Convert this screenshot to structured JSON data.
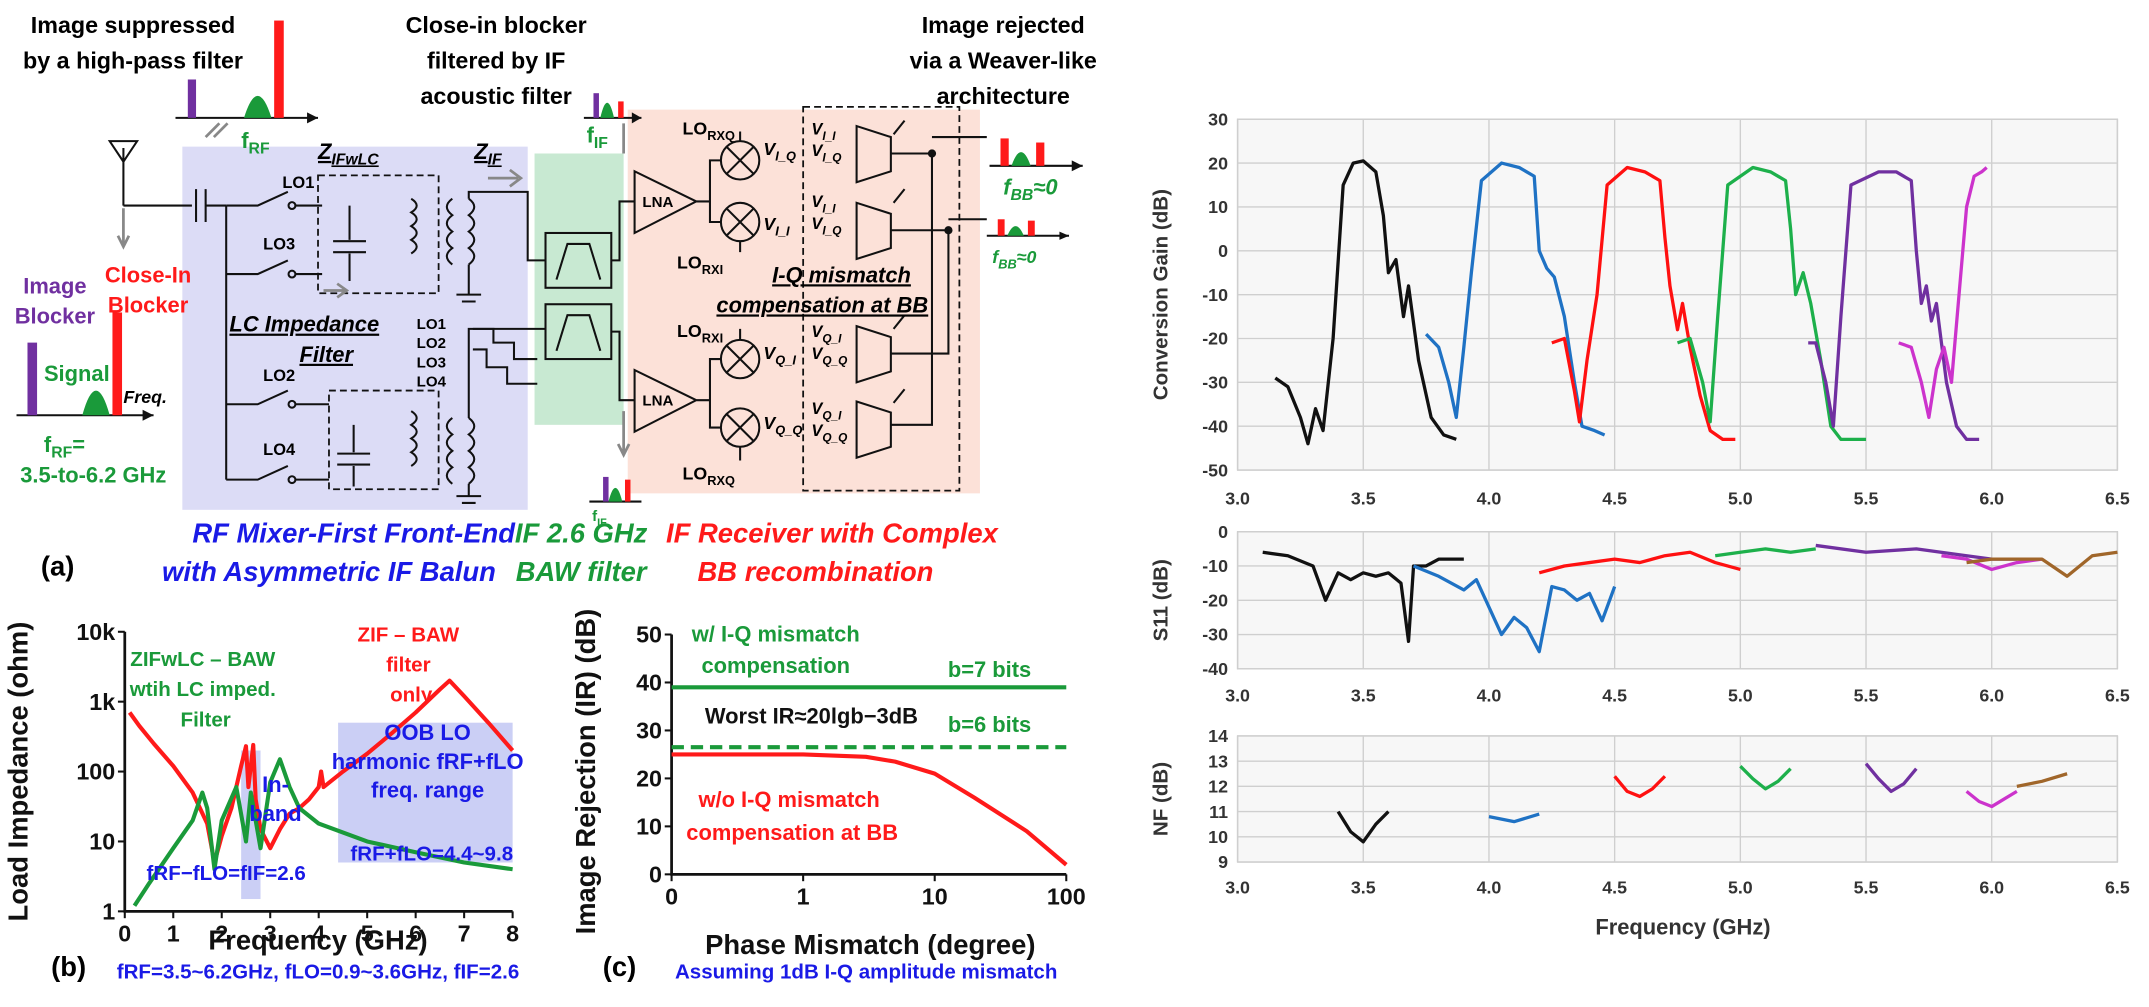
{
  "diagram": {
    "notes": {
      "image_suppressed": [
        "Image suppressed",
        "by a high-pass filter"
      ],
      "close_in": [
        "Close-in blocker",
        "filtered by IF",
        "acoustic filter"
      ],
      "image_rejected": [
        "Image rejected",
        "via a Weaver-like",
        "architecture"
      ]
    },
    "labels": {
      "f_rf": "fRF",
      "z_ifwlc": "ZIFwLC",
      "z_if": "ZIF",
      "f_if": "fIF",
      "f_if_low": "fIF",
      "lo_switch": [
        "LO1",
        "LO3",
        "LO2",
        "LO4"
      ],
      "lo_balun": [
        "LO1",
        "LO2",
        "LO3",
        "LO4"
      ],
      "lc_filter": [
        "LC Impedance",
        "Filter"
      ],
      "lna": [
        "LNA",
        "LNA"
      ],
      "lo_rx": [
        "LORXQ",
        "LORXI",
        "LORXI",
        "LORXQ"
      ],
      "mixer_out": [
        "VI_Q",
        "VI_I",
        "VQ_I",
        "VQ_Q"
      ],
      "adc_in": [
        "VI_I",
        "VI_Q",
        "VI_I",
        "VI_Q",
        "VQ_I",
        "VQ_Q",
        "VQ_I",
        "VQ_Q"
      ],
      "iq_comp": [
        "I-Q mismatch",
        "compensation at BB"
      ],
      "f_bb": [
        "fBB≈0",
        "fBB≈0"
      ],
      "image_blocker": [
        "Image",
        "Blocker"
      ],
      "close_in_blocker": [
        "Close-In",
        "Blocker"
      ],
      "signal": "Signal",
      "f_rf_eq": "fRF=",
      "freq": "Freq.",
      "rf_range": "3.5-to-6.2 GHz",
      "panel": "(a)"
    },
    "captions": {
      "front_end": [
        "RF Mixer-First Front-End",
        "with Asymmetric IF Balun"
      ],
      "baw": [
        "IF 2.6 GHz",
        "BAW filter"
      ],
      "receiver": [
        "IF Receiver with Complex",
        "BB recombination"
      ]
    }
  },
  "chart_data": [
    {
      "type": "line",
      "panel": "(b)",
      "xlabel": "Frequency (GHz)",
      "ylabel": "Load Impedance (ohm)",
      "caption": "fRF=3.5~6.2GHz, fLO=0.9~3.6GHz, fIF=2.6",
      "yscale": "log",
      "xlim": [
        0,
        8
      ],
      "ylim": [
        1,
        10000
      ],
      "xticks": [
        0,
        1,
        2,
        3,
        4,
        5,
        6,
        7,
        8
      ],
      "yticks": [
        1,
        10,
        100,
        {
          "value": 1000,
          "label": "1k"
        },
        {
          "value": 10000,
          "label": "10k"
        }
      ],
      "grid": false,
      "regions": [
        {
          "label": [
            "In-",
            "band"
          ],
          "color": "#b9bff2",
          "x": [
            2.4,
            2.8
          ],
          "y": [
            1.5,
            200
          ]
        },
        {
          "label": [
            "OOB LO",
            "harmonic fRF+fLO",
            "freq. range"
          ],
          "color": "#b9bff2",
          "x": [
            4.4,
            8
          ],
          "y": [
            5,
            500
          ]
        }
      ],
      "annotations": [
        {
          "text": [
            "fRF−fLO=fIF=2.6"
          ],
          "color": "#1a1ae6"
        },
        {
          "text": [
            "fRF+fLO=4.4~9.8"
          ],
          "color": "#1a1ae6"
        }
      ],
      "series": [
        {
          "name": "ZIF – BAW filter only",
          "color": "#ff1a1a",
          "x": [
            0.1,
            0.3,
            0.6,
            1.0,
            1.4,
            1.7,
            1.85,
            2.0,
            2.2,
            2.4,
            2.5,
            2.55,
            2.65,
            2.7,
            2.8,
            3.0,
            3.2,
            3.4,
            3.6,
            3.8,
            4.0,
            4.05,
            4.1,
            4.5,
            5.0,
            5.5,
            6.0,
            6.5,
            6.7,
            7.0,
            7.5,
            8.0
          ],
          "values": [
            700,
            450,
            250,
            120,
            50,
            18,
            5,
            12,
            30,
            120,
            230,
            60,
            240,
            40,
            15,
            8,
            15,
            25,
            30,
            40,
            60,
            100,
            60,
            100,
            180,
            350,
            700,
            1500,
            2000,
            1200,
            500,
            200
          ]
        },
        {
          "name": "ZIFwLC – BAW wtih LC imped. Filter",
          "color": "#1a9a3a",
          "x": [
            0.2,
            0.5,
            1.0,
            1.4,
            1.6,
            1.7,
            1.85,
            2.0,
            2.3,
            2.5,
            2.6,
            2.8,
            3.0,
            3.2,
            3.4,
            3.6,
            4.0,
            5.0,
            6.0,
            7.0,
            8.0
          ],
          "values": [
            1.2,
            2.5,
            8,
            20,
            50,
            30,
            4,
            20,
            60,
            10,
            50,
            8,
            70,
            150,
            60,
            30,
            18,
            10,
            7,
            5,
            4
          ]
        }
      ]
    },
    {
      "type": "line",
      "panel": "(c)",
      "xlabel": "Phase Mismatch (degree)",
      "ylabel": "Image Rejection (IR) (dB)",
      "caption": "Assuming 1dB I-Q amplitude mismatch",
      "xscale": "symlog",
      "xlim": [
        0,
        100
      ],
      "ylim": [
        0,
        50
      ],
      "xticks": [
        0,
        1,
        10,
        100
      ],
      "yticks": [
        0,
        10,
        20,
        30,
        40,
        50
      ],
      "grid": false,
      "annotations": [
        {
          "text": [
            "w/ I-Q mismatch",
            "compensation"
          ],
          "color": "#1a9a3a"
        },
        {
          "text": [
            "Worst IR≈20lgb−3dB"
          ],
          "color": "#111111"
        }
      ],
      "series": [
        {
          "name": "b=7 bits",
          "color": "#1a9a3a",
          "x": [
            0,
            100
          ],
          "values": [
            39,
            39
          ]
        },
        {
          "name": "b=6 bits",
          "color": "#1a9a3a",
          "dash": true,
          "x": [
            0,
            100
          ],
          "values": [
            26.5,
            26.5
          ]
        },
        {
          "name": "w/o I-Q mismatch compensation at BB",
          "color": "#ff1a1a",
          "x": [
            0,
            1,
            3,
            5,
            10,
            20,
            50,
            100
          ],
          "values": [
            25,
            25,
            24.5,
            23.5,
            21,
            16,
            9,
            2
          ]
        }
      ]
    },
    {
      "type": "line",
      "ylabel": "Conversion Gain (dB)",
      "xlim": [
        3,
        6.5
      ],
      "ylim": [
        -50,
        30
      ],
      "xticks": [
        {
          "value": 3,
          "label": "3.0"
        },
        3.5,
        {
          "value": 4,
          "label": "4.0"
        },
        4.5,
        {
          "value": 5,
          "label": "5.0"
        },
        5.5,
        {
          "value": 6,
          "label": "6.0"
        },
        6.5
      ],
      "yticks": [
        -50,
        -40,
        -30,
        -20,
        -10,
        0,
        10,
        20,
        30
      ],
      "grid": true,
      "series": [
        {
          "color": "#111111",
          "x": [
            3.15,
            3.2,
            3.25,
            3.28,
            3.31,
            3.34,
            3.38,
            3.42,
            3.46,
            3.5,
            3.55,
            3.58,
            3.6,
            3.63,
            3.66,
            3.68,
            3.72,
            3.77,
            3.82,
            3.87
          ],
          "values": [
            -29,
            -31,
            -38,
            -44,
            -36,
            -41,
            -20,
            15,
            20,
            20.5,
            18,
            8,
            -5,
            -2,
            -15,
            -8,
            -25,
            -38,
            -42,
            -43
          ]
        },
        {
          "color": "#1f72c4",
          "x": [
            3.75,
            3.8,
            3.84,
            3.87,
            3.9,
            3.93,
            3.97,
            4.05,
            4.12,
            4.18,
            4.2,
            4.23,
            4.26,
            4.3,
            4.34,
            4.37,
            4.42,
            4.46
          ],
          "values": [
            -19,
            -22,
            -30,
            -38,
            -22,
            -5,
            16,
            20,
            19,
            17,
            0,
            -4,
            -6,
            -15,
            -30,
            -40,
            -41,
            -42
          ]
        },
        {
          "color": "#ff1010",
          "x": [
            4.25,
            4.3,
            4.34,
            4.36,
            4.39,
            4.43,
            4.47,
            4.55,
            4.62,
            4.68,
            4.7,
            4.72,
            4.75,
            4.77,
            4.8,
            4.84,
            4.88,
            4.93,
            4.98
          ],
          "values": [
            -21,
            -20,
            -32,
            -39,
            -25,
            -10,
            15,
            19,
            18,
            16,
            3,
            -8,
            -18,
            -12,
            -22,
            -33,
            -41,
            -43,
            -43
          ]
        },
        {
          "color": "#1db04b",
          "x": [
            4.75,
            4.8,
            4.85,
            4.88,
            4.91,
            4.95,
            5.05,
            5.12,
            5.18,
            5.2,
            5.22,
            5.25,
            5.28,
            5.32,
            5.36,
            5.4,
            5.45,
            5.5
          ],
          "values": [
            -21,
            -20,
            -30,
            -39,
            -15,
            15,
            19,
            18,
            16,
            5,
            -10,
            -5,
            -12,
            -25,
            -40,
            -43,
            -43,
            -43
          ]
        },
        {
          "color": "#7030a0",
          "x": [
            5.27,
            5.3,
            5.34,
            5.37,
            5.4,
            5.44,
            5.55,
            5.62,
            5.68,
            5.7,
            5.72,
            5.74,
            5.76,
            5.78,
            5.82,
            5.86,
            5.9,
            5.95
          ],
          "values": [
            -21,
            -21,
            -30,
            -40,
            -15,
            15,
            18,
            18,
            16,
            0,
            -12,
            -8,
            -16,
            -12,
            -30,
            -40,
            -43,
            -43
          ]
        },
        {
          "color": "#cc33cc",
          "x": [
            5.63,
            5.68,
            5.72,
            5.75,
            5.78,
            5.81,
            5.84,
            5.87,
            5.9,
            5.93,
            5.96,
            5.98
          ],
          "values": [
            -21,
            -22,
            -30,
            -38,
            -27,
            -22,
            -30,
            -10,
            10,
            17,
            18,
            19
          ]
        }
      ]
    },
    {
      "type": "line",
      "ylabel": "S11 (dB)",
      "xlim": [
        3,
        6.5
      ],
      "ylim": [
        -40,
        0
      ],
      "xticks": [
        {
          "value": 3,
          "label": "3.0"
        },
        3.5,
        {
          "value": 4,
          "label": "4.0"
        },
        4.5,
        {
          "value": 5,
          "label": "5.0"
        },
        5.5,
        {
          "value": 6,
          "label": "6.0"
        },
        6.5
      ],
      "yticks": [
        -40,
        -30,
        -20,
        -10,
        0
      ],
      "grid": true,
      "series": [
        {
          "color": "#111111",
          "x": [
            3.1,
            3.2,
            3.3,
            3.35,
            3.4,
            3.45,
            3.5,
            3.55,
            3.6,
            3.65,
            3.68,
            3.7,
            3.75,
            3.8,
            3.9
          ],
          "values": [
            -6,
            -7,
            -10,
            -20,
            -12,
            -14,
            -12,
            -13,
            -12,
            -15,
            -32,
            -10,
            -10,
            -8,
            -8
          ]
        },
        {
          "color": "#1f72c4",
          "x": [
            3.7,
            3.8,
            3.9,
            3.95,
            4.0,
            4.05,
            4.1,
            4.15,
            4.2,
            4.25,
            4.3,
            4.35,
            4.4,
            4.45,
            4.5
          ],
          "values": [
            -10,
            -13,
            -17,
            -14,
            -22,
            -30,
            -25,
            -28,
            -35,
            -16,
            -17,
            -20,
            -18,
            -26,
            -16
          ]
        },
        {
          "color": "#ff1010",
          "x": [
            4.2,
            4.3,
            4.4,
            4.5,
            4.6,
            4.7,
            4.8,
            4.9,
            5.0
          ],
          "values": [
            -12,
            -10,
            -9,
            -8,
            -9,
            -7,
            -6,
            -9,
            -11
          ]
        },
        {
          "color": "#1db04b",
          "x": [
            4.9,
            5.0,
            5.1,
            5.2,
            5.3
          ],
          "values": [
            -7,
            -6,
            -5,
            -6,
            -5
          ]
        },
        {
          "color": "#7030a0",
          "x": [
            5.3,
            5.5,
            5.7,
            5.9,
            6.0,
            6.1
          ],
          "values": [
            -4,
            -6,
            -5,
            -7,
            -8,
            -8
          ]
        },
        {
          "color": "#cc33cc",
          "x": [
            5.8,
            5.9,
            6.0,
            6.1,
            6.2
          ],
          "values": [
            -7,
            -8,
            -11,
            -9,
            -8
          ]
        },
        {
          "color": "#a0662a",
          "x": [
            5.9,
            6.0,
            6.1,
            6.2,
            6.3,
            6.4,
            6.5
          ],
          "values": [
            -9,
            -8,
            -8,
            -8,
            -13,
            -7,
            -6
          ]
        }
      ]
    },
    {
      "type": "line",
      "ylabel": "NF (dB)",
      "xlabel": "Frequency (GHz)",
      "xlim": [
        3,
        6.5
      ],
      "ylim": [
        9,
        14
      ],
      "xticks": [
        {
          "value": 3,
          "label": "3.0"
        },
        3.5,
        {
          "value": 4,
          "label": "4.0"
        },
        4.5,
        {
          "value": 5,
          "label": "5.0"
        },
        5.5,
        {
          "value": 6,
          "label": "6.0"
        },
        6.5
      ],
      "yticks": [
        9,
        10,
        11,
        12,
        13,
        14
      ],
      "grid": true,
      "series": [
        {
          "color": "#111111",
          "x": [
            3.4,
            3.45,
            3.5,
            3.55,
            3.6
          ],
          "values": [
            11,
            10.2,
            9.8,
            10.5,
            11
          ]
        },
        {
          "color": "#1f72c4",
          "x": [
            4.0,
            4.1,
            4.2
          ],
          "values": [
            10.8,
            10.6,
            10.9
          ]
        },
        {
          "color": "#ff1010",
          "x": [
            4.5,
            4.55,
            4.6,
            4.65,
            4.7
          ],
          "values": [
            12.4,
            11.8,
            11.6,
            11.9,
            12.4
          ]
        },
        {
          "color": "#1db04b",
          "x": [
            5.0,
            5.05,
            5.1,
            5.15,
            5.2
          ],
          "values": [
            12.8,
            12.3,
            11.9,
            12.2,
            12.7
          ]
        },
        {
          "color": "#7030a0",
          "x": [
            5.5,
            5.55,
            5.6,
            5.65,
            5.7
          ],
          "values": [
            12.9,
            12.3,
            11.8,
            12.1,
            12.7
          ]
        },
        {
          "color": "#cc33cc",
          "x": [
            5.9,
            5.95,
            6.0,
            6.05,
            6.1
          ],
          "values": [
            11.8,
            11.4,
            11.2,
            11.5,
            11.8
          ]
        },
        {
          "color": "#a0662a",
          "x": [
            6.1,
            6.2,
            6.3
          ],
          "values": [
            12,
            12.2,
            12.5
          ]
        }
      ]
    }
  ]
}
